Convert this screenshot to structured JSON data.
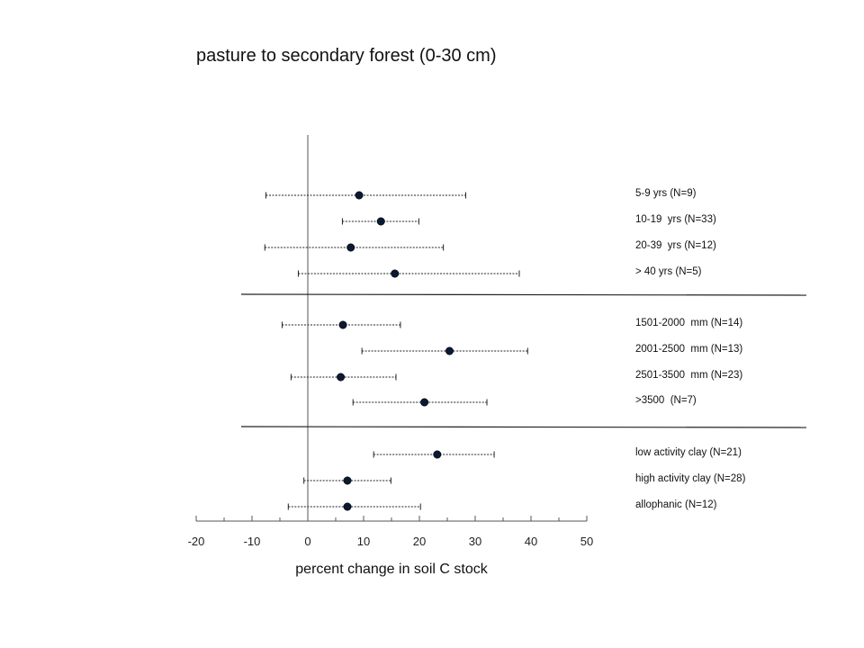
{
  "chart_data": {
    "type": "scatter",
    "title": "pasture to secondary forest (0-30 cm)",
    "xlabel": "percent change in soil C stock",
    "ylabel": "",
    "xlim": [
      -20,
      50
    ],
    "xticks": [
      -20,
      -10,
      0,
      10,
      20,
      30,
      40,
      50
    ],
    "xtick_labels": [
      "-20",
      "-10",
      "0",
      "10",
      "20",
      "30",
      "40",
      "50"
    ],
    "grid": false,
    "groups": [
      {
        "rows": [
          {
            "label": "5-9 yrs (N=9)",
            "mean": 9.2,
            "lower": -7.5,
            "upper": 28.3
          },
          {
            "label": "10-19  yrs (N=33)",
            "mean": 13.1,
            "lower": 6.2,
            "upper": 19.9
          },
          {
            "label": "20-39  yrs (N=12)",
            "mean": 7.7,
            "lower": -7.7,
            "upper": 24.3
          },
          {
            "label": "> 40 yrs (N=5)",
            "mean": 15.6,
            "lower": -1.7,
            "upper": 37.9
          }
        ]
      },
      {
        "rows": [
          {
            "label": "1501-2000  mm (N=14)",
            "mean": 6.3,
            "lower": -4.6,
            "upper": 16.6
          },
          {
            "label": "2001-2500  mm (N=13)",
            "mean": 25.4,
            "lower": 9.7,
            "upper": 39.4
          },
          {
            "label": "2501-3500  mm (N=23)",
            "mean": 5.9,
            "lower": -3.0,
            "upper": 15.8
          },
          {
            "label": ">3500  (N=7)",
            "mean": 20.9,
            "lower": 8.1,
            "upper": 32.1
          }
        ]
      },
      {
        "rows": [
          {
            "label": "low activity clay (N=21)",
            "mean": 23.2,
            "lower": 11.8,
            "upper": 33.4
          },
          {
            "label": "high activity clay (N=28)",
            "mean": 7.1,
            "lower": -0.7,
            "upper": 14.9
          },
          {
            "label": "allophanic (N=12)",
            "mean": 7.1,
            "lower": -3.5,
            "upper": 20.2
          }
        ]
      }
    ],
    "colors": {
      "marker": "#0b1a33",
      "errorbar": "#222222",
      "axis": "#555555",
      "separator": "#222222"
    }
  }
}
